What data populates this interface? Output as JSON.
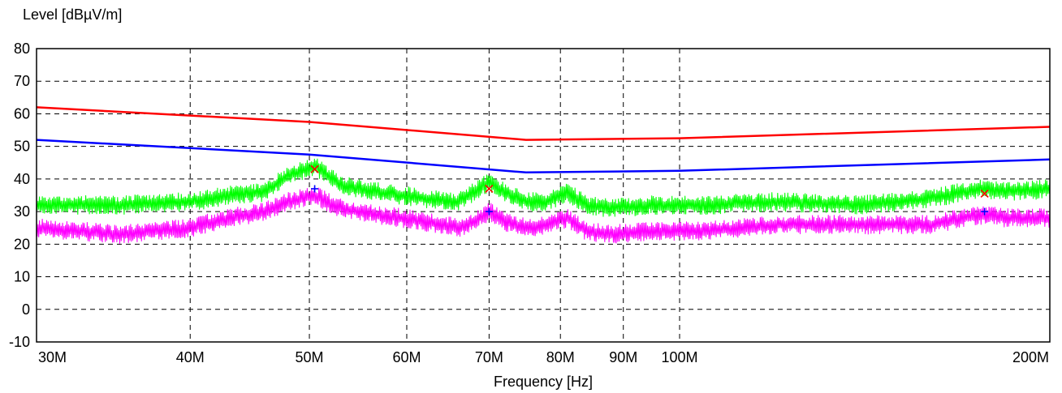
{
  "chart_data": {
    "type": "line",
    "title": "",
    "xlabel": "Frequency [Hz]",
    "ylabel": "Level [dBµV/m]",
    "x_scale": "log",
    "xlim": [
      30000000,
      200000000
    ],
    "ylim": [
      -10,
      80
    ],
    "grid": true,
    "legend": "none",
    "x_ticks": [
      {
        "value": 30000000,
        "label": "30M"
      },
      {
        "value": 40000000,
        "label": "40M"
      },
      {
        "value": 50000000,
        "label": "50M"
      },
      {
        "value": 60000000,
        "label": "60M"
      },
      {
        "value": 70000000,
        "label": "70M"
      },
      {
        "value": 80000000,
        "label": "80M"
      },
      {
        "value": 90000000,
        "label": "90M"
      },
      {
        "value": 100000000,
        "label": "100M"
      },
      {
        "value": 200000000,
        "label": "200M"
      }
    ],
    "y_ticks": [
      {
        "value": 80,
        "label": "80"
      },
      {
        "value": 70,
        "label": "70"
      },
      {
        "value": 60,
        "label": "60"
      },
      {
        "value": 50,
        "label": "50"
      },
      {
        "value": 40,
        "label": "40"
      },
      {
        "value": 30,
        "label": "30"
      },
      {
        "value": 20,
        "label": "20"
      },
      {
        "value": 10,
        "label": "10"
      },
      {
        "value": 0,
        "label": "0"
      },
      {
        "value": -10,
        "label": "-10"
      }
    ],
    "series": [
      {
        "kind": "line",
        "color": "#ff0000",
        "x": [
          30000000,
          50000000,
          75000000,
          100000000,
          200000000
        ],
        "y": [
          62,
          57.5,
          52,
          52.5,
          56
        ]
      },
      {
        "kind": "line",
        "color": "#0000ff",
        "x": [
          30000000,
          50000000,
          75000000,
          100000000,
          200000000
        ],
        "y": [
          52,
          47.5,
          42,
          42.5,
          46
        ]
      },
      {
        "kind": "noise",
        "color": "#00ff00",
        "noise_amplitude": 3,
        "x": [
          30000000,
          35000000,
          40000000,
          43000000,
          46000000,
          48000000,
          50500000,
          53000000,
          57000000,
          62000000,
          66000000,
          68000000,
          70000000,
          72000000,
          75000000,
          78000000,
          81000000,
          84000000,
          88000000,
          95000000,
          105000000,
          120000000,
          140000000,
          160000000,
          175000000,
          185000000,
          200000000
        ],
        "y": [
          32,
          32,
          33,
          35,
          36,
          41,
          44,
          38,
          36,
          34,
          33,
          36,
          39,
          36,
          33,
          33,
          36,
          32,
          31,
          32,
          32,
          33,
          32,
          34,
          37,
          36,
          37
        ]
      },
      {
        "kind": "noise",
        "color": "#ff00ff",
        "noise_amplitude": 3,
        "x": [
          30000000,
          35000000,
          40000000,
          43000000,
          46000000,
          48000000,
          50500000,
          53000000,
          57000000,
          62000000,
          66000000,
          68000000,
          70000000,
          72000000,
          75000000,
          78000000,
          81000000,
          84000000,
          88000000,
          95000000,
          105000000,
          120000000,
          140000000,
          160000000,
          175000000,
          185000000,
          200000000
        ],
        "y": [
          25,
          23,
          25,
          28,
          30,
          33,
          35,
          31,
          29,
          27,
          25,
          27,
          30,
          27,
          25,
          26,
          28,
          24,
          23,
          24,
          24,
          26,
          26,
          26,
          29,
          28,
          28
        ]
      },
      {
        "kind": "markers",
        "marker": "x",
        "color": "#ff0000",
        "x": [
          50500000,
          70000000,
          177000000
        ],
        "y": [
          43,
          37,
          35.5
        ]
      },
      {
        "kind": "markers",
        "marker": "+",
        "color": "#0000ff",
        "x": [
          50500000,
          70000000,
          177000000
        ],
        "y": [
          37,
          30,
          30
        ]
      }
    ]
  }
}
